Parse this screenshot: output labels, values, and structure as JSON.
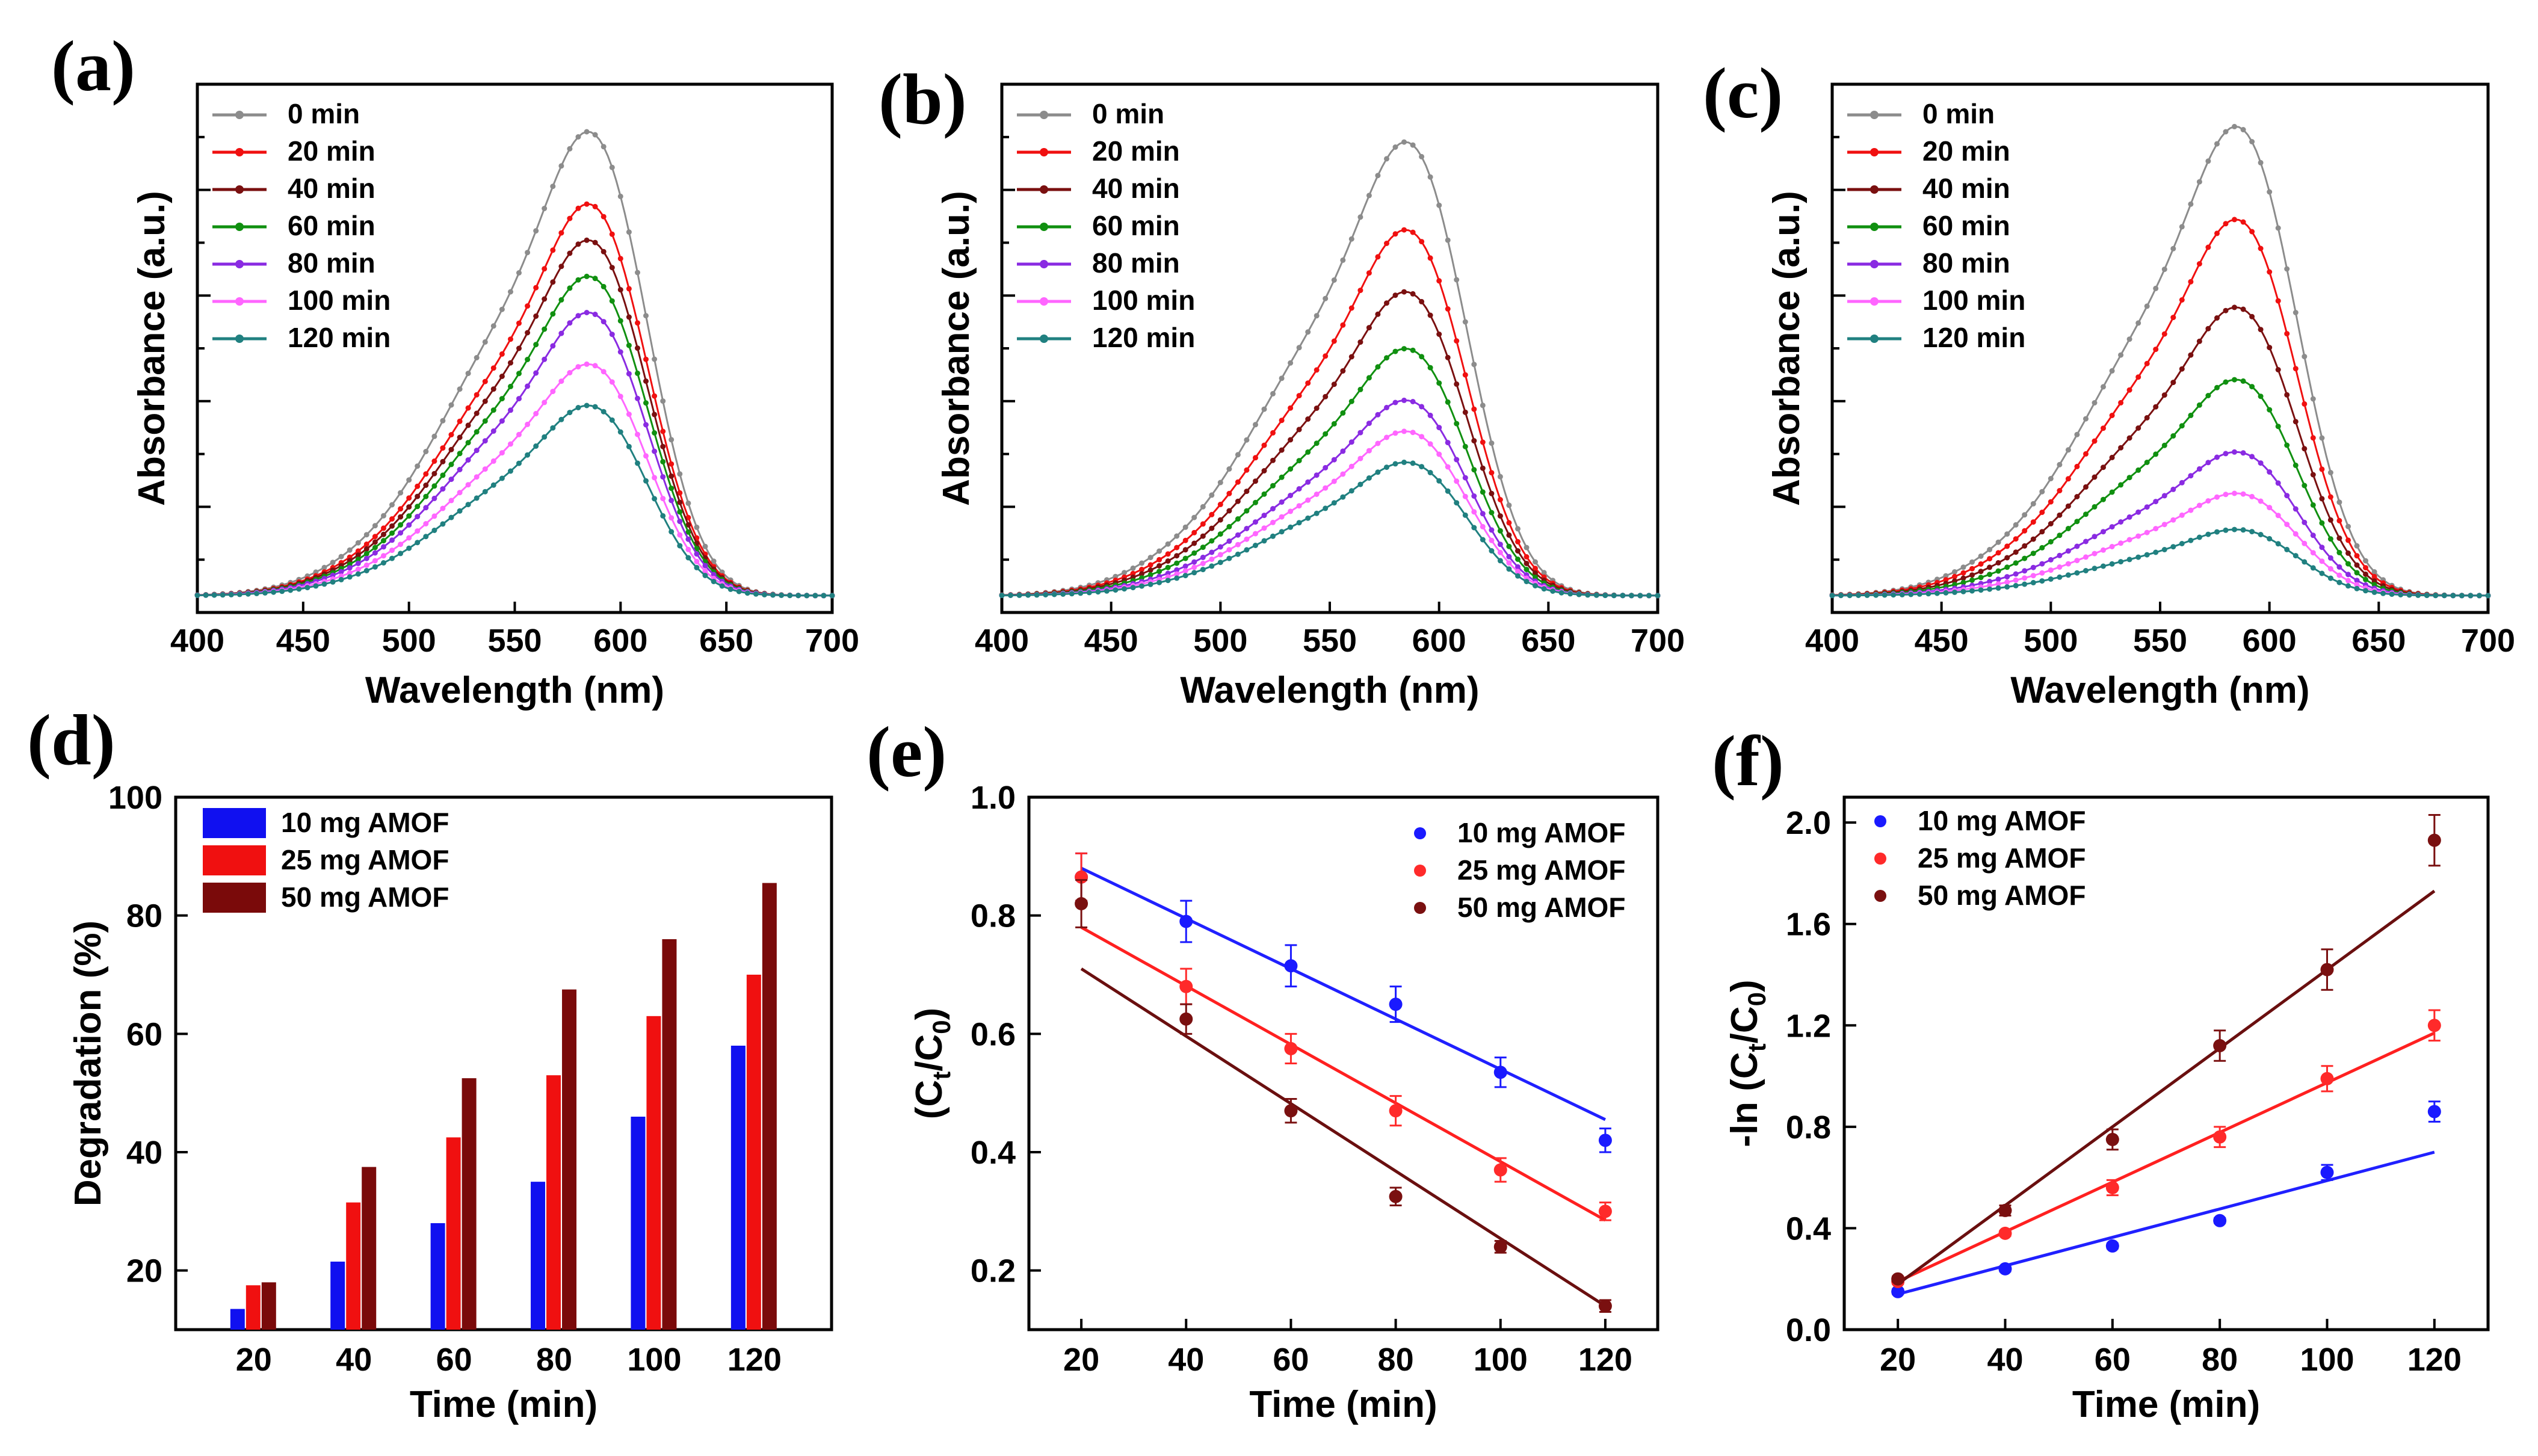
{
  "chart_data": [
    {
      "panel": "(a)",
      "type": "line",
      "xlabel": "Wavelength (nm)",
      "ylabel": "Absorbance (a.u.)",
      "xlim": [
        400,
        700
      ],
      "xticks": [
        "400",
        "450",
        "500",
        "550",
        "600",
        "650",
        "700"
      ],
      "ylim": [
        0,
        1.0
      ],
      "peak_nm": 590,
      "shoulder_nm": 550,
      "legend": "top-left",
      "series": [
        {
          "name": "0 min",
          "color": "#8c8c8c",
          "peak": 0.91
        },
        {
          "name": "20 min",
          "color": "#f01010",
          "peak": 0.77
        },
        {
          "name": "40 min",
          "color": "#7a1010",
          "peak": 0.7
        },
        {
          "name": "60 min",
          "color": "#109010",
          "peak": 0.63
        },
        {
          "name": "80 min",
          "color": "#8a2be2",
          "peak": 0.56
        },
        {
          "name": "100 min",
          "color": "#ff66ff",
          "peak": 0.46
        },
        {
          "name": "120 min",
          "color": "#208080",
          "peak": 0.38
        }
      ]
    },
    {
      "panel": "(b)",
      "type": "line",
      "xlabel": "Wavelength (nm)",
      "ylabel": "Absorbance (a.u.)",
      "xlim": [
        400,
        700
      ],
      "xticks": [
        "400",
        "450",
        "500",
        "550",
        "600",
        "650",
        "700"
      ],
      "ylim": [
        0,
        1.0
      ],
      "peak_nm": 590,
      "shoulder_nm": 550,
      "legend": "top-left",
      "series": [
        {
          "name": "0 min",
          "color": "#8c8c8c",
          "peak": 0.89
        },
        {
          "name": "20 min",
          "color": "#f01010",
          "peak": 0.72
        },
        {
          "name": "40 min",
          "color": "#7a1010",
          "peak": 0.6
        },
        {
          "name": "60 min",
          "color": "#109010",
          "peak": 0.49
        },
        {
          "name": "80 min",
          "color": "#8a2be2",
          "peak": 0.39
        },
        {
          "name": "100 min",
          "color": "#ff66ff",
          "peak": 0.33
        },
        {
          "name": "120 min",
          "color": "#208080",
          "peak": 0.27
        }
      ]
    },
    {
      "panel": "(c)",
      "type": "line",
      "xlabel": "Wavelength (nm)",
      "ylabel": "Absorbance (a.u.)",
      "xlim": [
        400,
        700
      ],
      "xticks": [
        "400",
        "450",
        "500",
        "550",
        "600",
        "650",
        "700"
      ],
      "ylim": [
        0,
        1.0
      ],
      "peak_nm": 590,
      "shoulder_nm": 550,
      "legend": "top-left",
      "series": [
        {
          "name": "0 min",
          "color": "#8c8c8c",
          "peak": 0.92
        },
        {
          "name": "20 min",
          "color": "#f01010",
          "peak": 0.74
        },
        {
          "name": "40 min",
          "color": "#7a1010",
          "peak": 0.57
        },
        {
          "name": "60 min",
          "color": "#109010",
          "peak": 0.43
        },
        {
          "name": "80 min",
          "color": "#8a2be2",
          "peak": 0.29
        },
        {
          "name": "100 min",
          "color": "#ff66ff",
          "peak": 0.21
        },
        {
          "name": "120 min",
          "color": "#208080",
          "peak": 0.14
        }
      ]
    },
    {
      "panel": "(d)",
      "type": "bar",
      "xlabel": "Time (min)",
      "ylabel": "Degradation (%)",
      "categories": [
        "20",
        "40",
        "60",
        "80",
        "100",
        "120"
      ],
      "ylim": [
        10,
        100
      ],
      "yticks": [
        "20",
        "40",
        "60",
        "80",
        "100"
      ],
      "legend": "top-left",
      "series": [
        {
          "name": "10 mg AMOF",
          "color": "#1010f0",
          "values": [
            13.5,
            21.5,
            28,
            35,
            46,
            58
          ]
        },
        {
          "name": "25 mg AMOF",
          "color": "#f01010",
          "values": [
            17.5,
            31.5,
            42.5,
            53,
            63,
            70
          ]
        },
        {
          "name": "50 mg AMOF",
          "color": "#7a0a0a",
          "values": [
            18,
            37.5,
            52.5,
            67.5,
            76,
            85.5
          ]
        }
      ]
    },
    {
      "panel": "(e)",
      "type": "scatter",
      "xlabel": "Time (min)",
      "ylabel_main": "(C",
      "ylabel_sub1": "t",
      "ylabel_mid": "/C",
      "ylabel_sub2": "0",
      "ylabel_end": ")",
      "xlim": [
        10,
        130
      ],
      "ylim": [
        0.1,
        1.0
      ],
      "xticks": [
        "20",
        "40",
        "60",
        "80",
        "100",
        "120"
      ],
      "yticks": [
        "0.2",
        "0.4",
        "0.6",
        "0.8",
        "1.0"
      ],
      "legend": "top-right",
      "x": [
        20,
        40,
        60,
        80,
        100,
        120
      ],
      "series": [
        {
          "name": "10 mg AMOF",
          "color": "#1a1aff",
          "line_color": "#2020ff",
          "values": [
            0.865,
            0.79,
            0.715,
            0.65,
            0.535,
            0.42
          ],
          "err": [
            0.04,
            0.035,
            0.035,
            0.03,
            0.025,
            0.02
          ],
          "fit": [
            0.88,
            0.455
          ]
        },
        {
          "name": "25 mg AMOF",
          "color": "#ff2a2a",
          "line_color": "#ff2020",
          "values": [
            0.865,
            0.68,
            0.575,
            0.47,
            0.37,
            0.3
          ],
          "err": [
            0.04,
            0.03,
            0.025,
            0.025,
            0.02,
            0.015
          ],
          "fit": [
            0.78,
            0.285
          ]
        },
        {
          "name": "50 mg AMOF",
          "color": "#7a1010",
          "line_color": "#6a0f0f",
          "values": [
            0.82,
            0.625,
            0.47,
            0.325,
            0.24,
            0.14
          ],
          "err": [
            0.04,
            0.025,
            0.02,
            0.015,
            0.01,
            0.01
          ],
          "fit": [
            0.71,
            0.14
          ]
        }
      ]
    },
    {
      "panel": "(f)",
      "type": "scatter",
      "xlabel": "Time (min)",
      "ylabel_main": "-ln (C",
      "ylabel_sub1": "t",
      "ylabel_mid": "/C",
      "ylabel_sub2": "0",
      "ylabel_end": ")",
      "xlim": [
        10,
        130
      ],
      "ylim": [
        0,
        2.1
      ],
      "xticks": [
        "20",
        "40",
        "60",
        "80",
        "100",
        "120"
      ],
      "yticks": [
        "0.0",
        "0.4",
        "0.8",
        "1.2",
        "1.6",
        "2.0"
      ],
      "legend": "top-left",
      "x": [
        20,
        40,
        60,
        80,
        100,
        120
      ],
      "series": [
        {
          "name": "10 mg AMOF",
          "color": "#1a1aff",
          "line_color": "#2020ff",
          "values": [
            0.15,
            0.24,
            0.33,
            0.43,
            0.62,
            0.86
          ],
          "err": [
            0.01,
            0.01,
            0.01,
            0.01,
            0.03,
            0.04
          ],
          "fit": [
            0.14,
            0.7
          ]
        },
        {
          "name": "25 mg AMOF",
          "color": "#ff2a2a",
          "line_color": "#ff2020",
          "values": [
            0.19,
            0.38,
            0.56,
            0.76,
            0.99,
            1.2
          ],
          "err": [
            0.01,
            0.01,
            0.03,
            0.04,
            0.05,
            0.06
          ],
          "fit": [
            0.19,
            1.17
          ]
        },
        {
          "name": "50 mg AMOF",
          "color": "#7a1010",
          "line_color": "#6a0f0f",
          "values": [
            0.2,
            0.47,
            0.75,
            1.12,
            1.42,
            1.93
          ],
          "err": [
            0.01,
            0.02,
            0.04,
            0.06,
            0.08,
            0.1
          ],
          "fit": [
            0.18,
            1.73
          ]
        }
      ]
    }
  ]
}
